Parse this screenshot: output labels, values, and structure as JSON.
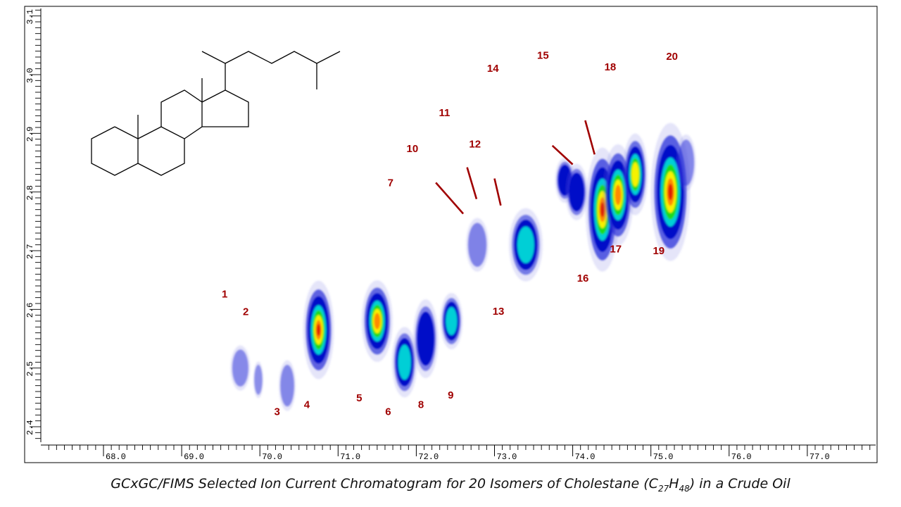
{
  "chart_data": {
    "type": "heatmap",
    "title": "",
    "xlabel": "",
    "ylabel": "",
    "xlim": [
      67.3,
      78.0
    ],
    "ylim": [
      2.36,
      3.16
    ],
    "x_ticks": [
      "68.0",
      "69.0",
      "70.0",
      "71.0",
      "72.0",
      "73.0",
      "74.0",
      "75.0",
      "76.0",
      "77.0"
    ],
    "y_ticks": [
      "2.4",
      "2.5",
      "2.6",
      "2.7",
      "2.8",
      "2.9",
      "3.0",
      "3.1"
    ],
    "colormap": [
      "#ffffff",
      "#2b30d9",
      "#0009c8",
      "#00cfd6",
      "#1edb1a",
      "#f7f200",
      "#ff8a00",
      "#e01b00"
    ],
    "label_color": "#a00000",
    "spots": [
      {
        "x": 69.75,
        "y": 2.5,
        "intensity": 0.18
      },
      {
        "x": 69.98,
        "y": 2.48,
        "intensity": 0.1
      },
      {
        "x": 70.35,
        "y": 2.47,
        "intensity": 0.22
      },
      {
        "x": 70.75,
        "y": 2.565,
        "intensity": 0.95
      },
      {
        "x": 71.5,
        "y": 2.58,
        "intensity": 0.85
      },
      {
        "x": 71.85,
        "y": 2.51,
        "intensity": 0.45
      },
      {
        "x": 72.12,
        "y": 2.55,
        "intensity": 0.35
      },
      {
        "x": 72.45,
        "y": 2.58,
        "intensity": 0.5
      },
      {
        "x": 72.78,
        "y": 2.71,
        "intensity": 0.3
      },
      {
        "x": 73.4,
        "y": 2.71,
        "intensity": 0.5
      },
      {
        "x": 73.9,
        "y": 2.82,
        "intensity": 0.35
      },
      {
        "x": 74.05,
        "y": 2.8,
        "intensity": 0.4
      },
      {
        "x": 74.38,
        "y": 2.77,
        "intensity": 1.0
      },
      {
        "x": 74.58,
        "y": 2.795,
        "intensity": 0.85
      },
      {
        "x": 74.8,
        "y": 2.83,
        "intensity": 0.7
      },
      {
        "x": 75.25,
        "y": 2.8,
        "intensity": 1.0
      },
      {
        "x": 75.45,
        "y": 2.85,
        "intensity": 0.25
      }
    ],
    "peak_labels": [
      {
        "text": "1",
        "x": 69.55,
        "y": 2.62
      },
      {
        "text": "2",
        "x": 69.82,
        "y": 2.59
      },
      {
        "text": "3",
        "x": 70.22,
        "y": 2.42
      },
      {
        "text": "4",
        "x": 70.6,
        "y": 2.432
      },
      {
        "text": "5",
        "x": 71.27,
        "y": 2.443
      },
      {
        "text": "6",
        "x": 71.64,
        "y": 2.42
      },
      {
        "text": "7",
        "x": 71.67,
        "y": 2.81
      },
      {
        "text": "8",
        "x": 72.06,
        "y": 2.432
      },
      {
        "text": "9",
        "x": 72.44,
        "y": 2.448
      },
      {
        "text": "10",
        "x": 71.95,
        "y": 2.868
      },
      {
        "text": "11",
        "x": 72.36,
        "y": 2.929
      },
      {
        "text": "12",
        "x": 72.75,
        "y": 2.876
      },
      {
        "text": "13",
        "x": 73.05,
        "y": 2.591
      },
      {
        "text": "14",
        "x": 72.98,
        "y": 3.005
      },
      {
        "text": "15",
        "x": 73.62,
        "y": 3.027
      },
      {
        "text": "16",
        "x": 74.13,
        "y": 2.647
      },
      {
        "text": "17",
        "x": 74.55,
        "y": 2.697
      },
      {
        "text": "18",
        "x": 74.48,
        "y": 3.007
      },
      {
        "text": "19",
        "x": 75.1,
        "y": 2.694
      },
      {
        "text": "20",
        "x": 75.27,
        "y": 3.025
      }
    ],
    "pointer_lines": [
      {
        "x1": 72.25,
        "y1": 2.816,
        "x2": 72.6,
        "y2": 2.763
      },
      {
        "x1": 72.65,
        "y1": 2.842,
        "x2": 72.77,
        "y2": 2.788
      },
      {
        "x1": 73.0,
        "y1": 2.823,
        "x2": 73.08,
        "y2": 2.777
      },
      {
        "x1": 73.74,
        "y1": 2.879,
        "x2": 74.0,
        "y2": 2.847
      },
      {
        "x1": 74.16,
        "y1": 2.922,
        "x2": 74.28,
        "y2": 2.864
      }
    ]
  },
  "caption": {
    "prefix": "GCxGC/FIMS Selected Ion Current Chromatogram for 20 Isomers of Cholestane (C",
    "sub1": "27",
    "mid": "H",
    "sub2": "48",
    "suffix": ") in a Crude Oil"
  }
}
